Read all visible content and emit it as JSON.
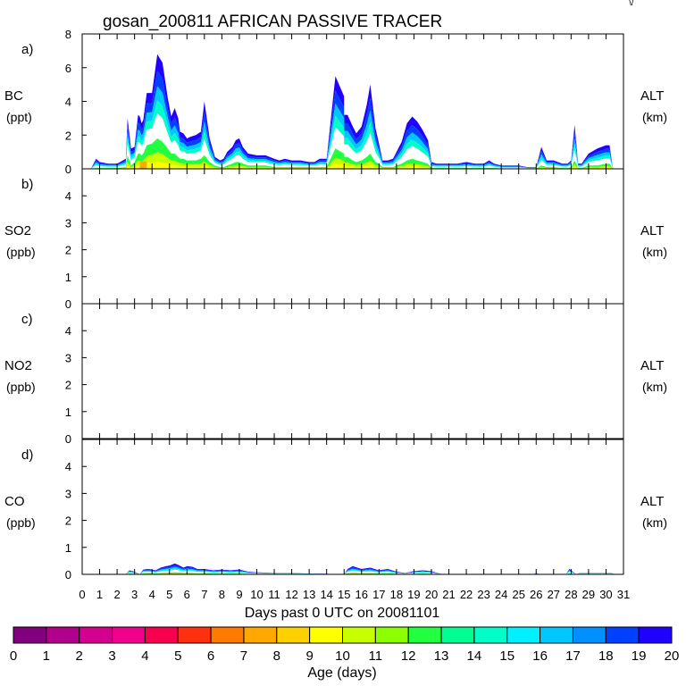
{
  "chart_data": {
    "type": "area",
    "title": "gosan_200811 AFRICAN PASSIVE TRACER",
    "corner_mark": "\\/",
    "xlabel": "Days past 0 UTC on 20081101",
    "xlim": [
      0,
      31
    ],
    "x_ticks": [
      "0",
      "1",
      "2",
      "3",
      "4",
      "5",
      "6",
      "7",
      "8",
      "9",
      "10",
      "11",
      "12",
      "13",
      "14",
      "15",
      "16",
      "17",
      "18",
      "19",
      "20",
      "21",
      "22",
      "23",
      "24",
      "25",
      "26",
      "27",
      "28",
      "29",
      "30",
      "31"
    ],
    "colorbar": {
      "label": "Age (days)",
      "ticks": [
        "0",
        "1",
        "2",
        "3",
        "4",
        "5",
        "6",
        "7",
        "8",
        "9",
        "10",
        "11",
        "12",
        "13",
        "14",
        "15",
        "16",
        "17",
        "18",
        "19",
        "20"
      ],
      "colors": [
        "#800080",
        "#b0008c",
        "#d40090",
        "#f0008c",
        "#f8004e",
        "#ff3010",
        "#ff7a00",
        "#ffa800",
        "#ffd000",
        "#ffff00",
        "#c8ff00",
        "#8cff00",
        "#20ff40",
        "#00ff90",
        "#00ffc8",
        "#00f0ff",
        "#00c8ff",
        "#0090ff",
        "#0040ff",
        "#2000ff"
      ]
    },
    "panels": [
      {
        "id": "a",
        "letter": "a)",
        "ylabel": "BC",
        "yunit": "(ppt)",
        "right_label": "ALT",
        "right_unit": "(km)",
        "ylim": [
          0,
          8
        ],
        "yticks": [
          "0",
          "2",
          "4",
          "6",
          "8"
        ],
        "series_x": [
          0,
          0.5,
          0.8,
          1,
          1.5,
          2,
          2.5,
          2.6,
          2.8,
          3,
          3.2,
          3.3,
          3.4,
          3.5,
          3.7,
          4,
          4.3,
          4.6,
          4.9,
          5.1,
          5.3,
          5.5,
          5.6,
          5.8,
          6,
          6.2,
          6.5,
          6.8,
          7,
          7.3,
          7.6,
          7.9,
          8.1,
          8.3,
          8.6,
          8.8,
          9,
          9.2,
          9.5,
          10,
          10.5,
          11,
          11.3,
          11.6,
          12,
          12.5,
          13,
          13.3,
          13.6,
          14,
          14.5,
          15,
          15,
          15.2,
          15.5,
          15.7,
          16,
          16.3,
          16.5,
          16.8,
          17,
          17.2,
          17.5,
          17.8,
          18,
          18.3,
          18.6,
          18.9,
          19.2,
          19.5,
          19.8,
          20,
          20.3,
          20.6,
          21,
          21.5,
          22,
          22.5,
          23,
          23.3,
          23.6,
          24,
          24.5,
          25,
          25.5,
          26,
          26.3,
          26.6,
          27,
          27.5,
          27.8,
          28,
          28.2,
          28.4,
          28.6,
          29,
          29.5,
          30,
          30.2,
          30.4
        ],
        "series_total": [
          0,
          0,
          0.6,
          0.4,
          0.3,
          0.3,
          0.6,
          3,
          1.2,
          1.3,
          3.2,
          3.1,
          2.7,
          2.9,
          4.5,
          4.5,
          6.8,
          6.3,
          4.2,
          3.1,
          3.6,
          3,
          2.2,
          2.1,
          1.8,
          1.9,
          2,
          2.2,
          4,
          1.8,
          0.7,
          0.5,
          0.6,
          1,
          1.3,
          1.7,
          1.8,
          1.3,
          0.9,
          0.8,
          0.8,
          0.6,
          0.5,
          0.6,
          0.5,
          0.5,
          0.4,
          0.4,
          0.6,
          0.6,
          5.5,
          4.3,
          3.2,
          3.2,
          2.5,
          2.1,
          2.5,
          3.8,
          5,
          2.4,
          1.5,
          0.5,
          0.5,
          0.6,
          1,
          1.6,
          2.7,
          3.1,
          2.8,
          2.3,
          1.7,
          0.4,
          0.3,
          0.3,
          0.3,
          0.3,
          0.4,
          0.3,
          0.3,
          0.5,
          0.3,
          0.2,
          0.2,
          0.2,
          0.1,
          0.1,
          1.3,
          0.5,
          0.5,
          0.3,
          0.3,
          0.5,
          2.6,
          0.3,
          0.3,
          0.9,
          1.2,
          1.4,
          1.4,
          0
        ],
        "series_young": [
          0,
          0,
          0.05,
          0.05,
          0.05,
          0.05,
          0.1,
          0.8,
          0.2,
          0.4,
          0.9,
          0.9,
          0.8,
          0.9,
          1.4,
          1.5,
          1.8,
          1.6,
          1.2,
          0.9,
          0.9,
          0.7,
          0.6,
          0.6,
          0.5,
          0.5,
          0.5,
          0.6,
          0.8,
          0.4,
          0.2,
          0.1,
          0.1,
          0.2,
          0.3,
          0.4,
          0.4,
          0.3,
          0.2,
          0.2,
          0.2,
          0.1,
          0.1,
          0.1,
          0.1,
          0.1,
          0.1,
          0.1,
          0.1,
          0.1,
          1.2,
          0.9,
          0.7,
          0.7,
          0.5,
          0.4,
          0.5,
          0.7,
          0.9,
          0.4,
          0.3,
          0.1,
          0.1,
          0.1,
          0.2,
          0.3,
          0.5,
          0.6,
          0.5,
          0.4,
          0.3,
          0.05,
          0.05,
          0.05,
          0.05,
          0.05,
          0.05,
          0.05,
          0.05,
          0.05,
          0.05,
          0.02,
          0.02,
          0.02,
          0.01,
          0.01,
          0.2,
          0.1,
          0.1,
          0.05,
          0.05,
          0.1,
          0.5,
          0.05,
          0.05,
          0.2,
          0.2,
          0.3,
          0.3,
          0
        ]
      },
      {
        "id": "b",
        "letter": "b)",
        "ylabel": "SO2",
        "yunit": "(ppb)",
        "right_label": "ALT",
        "right_unit": "(km)",
        "ylim": [
          0,
          5
        ],
        "yticks": [
          "0",
          "1",
          "2",
          "3",
          "4"
        ],
        "series_x": [
          0,
          31
        ],
        "series_total": [
          0,
          0
        ],
        "series_young": [
          0,
          0
        ]
      },
      {
        "id": "c",
        "letter": "c)",
        "ylabel": "NO2",
        "yunit": "(ppb)",
        "right_label": "ALT",
        "right_unit": "(km)",
        "ylim": [
          0,
          5
        ],
        "yticks": [
          "0",
          "1",
          "2",
          "3",
          "4"
        ],
        "series_x": [
          0,
          31
        ],
        "series_total": [
          0,
          0
        ],
        "series_young": [
          0,
          0
        ]
      },
      {
        "id": "d",
        "letter": "d)",
        "ylabel": "CO",
        "yunit": "(ppb)",
        "right_label": "ALT",
        "right_unit": "(km)",
        "ylim": [
          0,
          5
        ],
        "yticks": [
          "0",
          "1",
          "2",
          "3",
          "4"
        ],
        "series_x": [
          0,
          2.5,
          2.7,
          3,
          3.3,
          3.5,
          3.8,
          4.2,
          4.5,
          4.8,
          5,
          5.3,
          5.5,
          5.8,
          6,
          6.3,
          6.6,
          7,
          7.5,
          8,
          8.5,
          9,
          9.5,
          10,
          11,
          12,
          13,
          14,
          15,
          15.2,
          15.5,
          16,
          16.5,
          17,
          17.5,
          18,
          18.5,
          19,
          19.5,
          20,
          20.5,
          21,
          25.8,
          26,
          26.2,
          27.7,
          27.9,
          28.1,
          28.3,
          28.5,
          29,
          30,
          30.3,
          30.5,
          31
        ],
        "series_total": [
          0,
          0,
          0.15,
          0.1,
          0,
          0.18,
          0.2,
          0.15,
          0.25,
          0.3,
          0.32,
          0.4,
          0.35,
          0.25,
          0.3,
          0.28,
          0.2,
          0.2,
          0.15,
          0.18,
          0.15,
          0.18,
          0.1,
          0.08,
          0.05,
          0.05,
          0.03,
          0.02,
          0,
          0.2,
          0.3,
          0.2,
          0.25,
          0.15,
          0.2,
          0.1,
          0.05,
          0.12,
          0.15,
          0.12,
          0.02,
          0,
          0,
          0.05,
          0,
          0,
          0.2,
          0.1,
          0,
          0.05,
          0.05,
          0.05,
          0.05,
          0,
          0
        ],
        "series_young": [
          0,
          0,
          0.03,
          0.02,
          0,
          0.04,
          0.05,
          0.03,
          0.05,
          0.06,
          0.06,
          0.08,
          0.07,
          0.05,
          0.06,
          0.05,
          0.04,
          0.04,
          0.03,
          0.03,
          0.03,
          0.03,
          0.02,
          0.02,
          0.01,
          0.01,
          0.01,
          0,
          0,
          0.04,
          0.06,
          0.04,
          0.05,
          0.03,
          0.04,
          0.02,
          0.01,
          0.02,
          0.03,
          0.02,
          0,
          0,
          0,
          0.01,
          0,
          0,
          0.04,
          0.02,
          0,
          0.01,
          0.01,
          0.01,
          0.01,
          0,
          0
        ]
      }
    ]
  }
}
